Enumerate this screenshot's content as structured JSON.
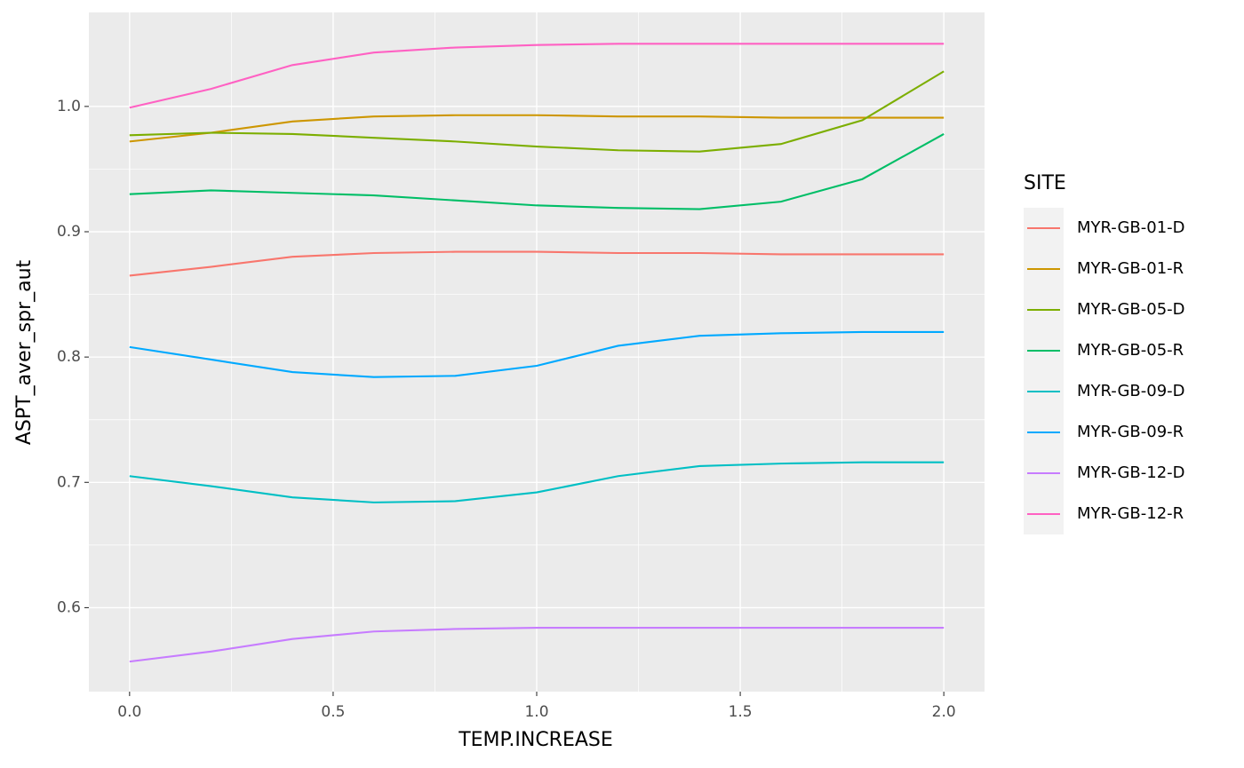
{
  "chart_data": {
    "type": "line",
    "x_label": "TEMP.INCREASE",
    "y_label": "ASPT_aver_spr_aut",
    "legend_title": "SITE",
    "x": [
      0,
      0.2,
      0.4,
      0.6,
      0.8,
      1.0,
      1.2,
      1.4,
      1.6,
      1.8,
      2.0
    ],
    "series": [
      {
        "name": "MYR-GB-01-D",
        "color": "#F8766D",
        "values": [
          0.865,
          0.872,
          0.88,
          0.883,
          0.884,
          0.884,
          0.883,
          0.883,
          0.882,
          0.882,
          0.882
        ]
      },
      {
        "name": "MYR-GB-01-R",
        "color": "#CD9600",
        "values": [
          0.972,
          0.979,
          0.988,
          0.992,
          0.993,
          0.993,
          0.992,
          0.992,
          0.991,
          0.991,
          0.991
        ]
      },
      {
        "name": "MYR-GB-05-D",
        "color": "#7CAE00",
        "values": [
          0.977,
          0.979,
          0.978,
          0.975,
          0.972,
          0.968,
          0.965,
          0.964,
          0.97,
          0.989,
          1.028
        ]
      },
      {
        "name": "MYR-GB-05-R",
        "color": "#00BE67",
        "values": [
          0.93,
          0.933,
          0.931,
          0.929,
          0.925,
          0.921,
          0.919,
          0.918,
          0.924,
          0.942,
          0.978
        ]
      },
      {
        "name": "MYR-GB-09-D",
        "color": "#00BFC4",
        "values": [
          0.705,
          0.697,
          0.688,
          0.684,
          0.685,
          0.692,
          0.705,
          0.713,
          0.715,
          0.716,
          0.716
        ]
      },
      {
        "name": "MYR-GB-09-R",
        "color": "#00A9FF",
        "values": [
          0.808,
          0.798,
          0.788,
          0.784,
          0.785,
          0.793,
          0.809,
          0.817,
          0.819,
          0.82,
          0.82
        ]
      },
      {
        "name": "MYR-GB-12-D",
        "color": "#C77CFF",
        "values": [
          0.557,
          0.565,
          0.575,
          0.581,
          0.583,
          0.584,
          0.584,
          0.584,
          0.584,
          0.584,
          0.584
        ]
      },
      {
        "name": "MYR-GB-12-R",
        "color": "#FF61C3",
        "values": [
          0.999,
          1.014,
          1.033,
          1.043,
          1.047,
          1.049,
          1.05,
          1.05,
          1.05,
          1.05,
          1.05
        ]
      }
    ],
    "xlim": [
      -0.1,
      2.1
    ],
    "xticks": [
      {
        "value": 0,
        "label": "0.0"
      },
      0.5,
      {
        "value": 1,
        "label": "1.0"
      },
      1.5,
      {
        "value": 2,
        "label": "2.0"
      }
    ],
    "ylim": [
      0.533,
      1.075
    ],
    "yticks": [
      0.6,
      0.7,
      0.8,
      0.9,
      {
        "value": 1,
        "label": "1.0"
      }
    ],
    "grid": true,
    "legend": "right"
  }
}
